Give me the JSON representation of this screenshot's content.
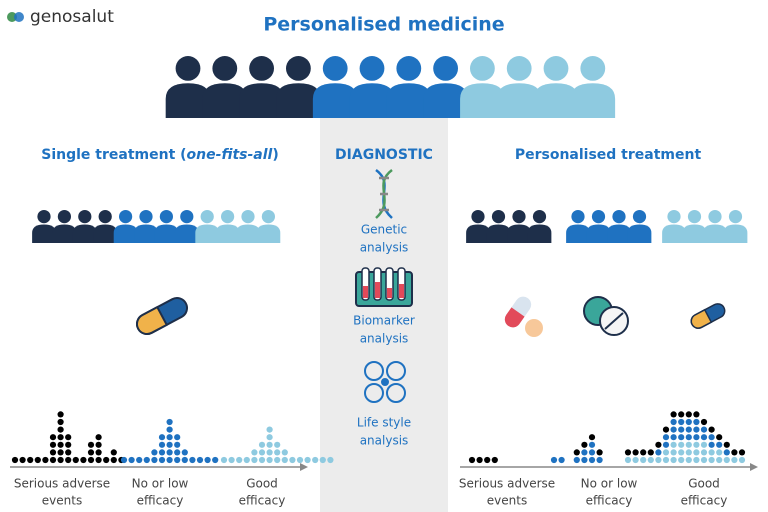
{
  "logo": "genosalut",
  "title": "Personalised medicine",
  "left": {
    "title_prefix": "Single treatment (",
    "title_italic": "one-fits-all",
    "title_suffix": ")",
    "labels": [
      [
        "Serious adverse",
        "events"
      ],
      [
        "No or low",
        "efficacy"
      ],
      [
        "Good",
        "efficacy"
      ]
    ]
  },
  "center": {
    "title": "DIAGNOSTIC",
    "items": [
      [
        "Genetic",
        "analysis"
      ],
      [
        "Biomarker",
        "analysis"
      ],
      [
        "Life style",
        "analysis"
      ]
    ]
  },
  "right": {
    "title": "Personalised treatment",
    "labels": [
      [
        "Serious adverse",
        "events"
      ],
      [
        "No or low",
        "efficacy"
      ],
      [
        "Good",
        "efficacy"
      ]
    ]
  }
}
